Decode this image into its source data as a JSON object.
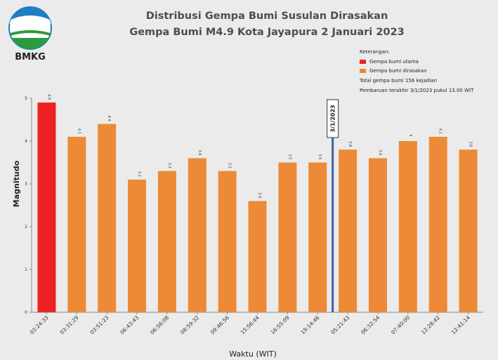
{
  "logo": {
    "text": "BMKG"
  },
  "chart_data": {
    "type": "bar",
    "title": "Distribusi Gempa Bumi Susulan Dirasakan",
    "subtitle": "Gempa Bumi M4.9 Kota Jayapura 2 Januari 2023",
    "xlabel": "Waktu (WIT)",
    "ylabel": "Magnitudo",
    "ylim": [
      0,
      5
    ],
    "yticks": [
      "0",
      "1",
      "2",
      "3",
      "4",
      "5"
    ],
    "grid": false,
    "legend_position": "top-right",
    "categories": [
      "03:24:33",
      "03:31:29",
      "03:51:23",
      "06:43:43",
      "06:56:08",
      "08:59:32",
      "09:46:56",
      "15:56:44",
      "16:55:09",
      "19:14:46",
      "05:21:43",
      "06:32:54",
      "07:40:00",
      "12:28:42",
      "12:41:14"
    ],
    "values": [
      4.9,
      4.1,
      4.4,
      3.1,
      3.3,
      3.6,
      3.3,
      2.6,
      3.5,
      3.5,
      3.8,
      3.6,
      4,
      4.1,
      3.8
    ],
    "value_labels": [
      "4.9",
      "4.1",
      "4.4",
      "3.1",
      "3.3",
      "3.6",
      "3.3",
      "2.6",
      "3.5",
      "3.5",
      "3.8",
      "3.6",
      "4",
      "4.1",
      "3.8"
    ],
    "bar_types": [
      "utama",
      "dirasakan",
      "dirasakan",
      "dirasakan",
      "dirasakan",
      "dirasakan",
      "dirasakan",
      "dirasakan",
      "dirasakan",
      "dirasakan",
      "dirasakan",
      "dirasakan",
      "dirasakan",
      "dirasakan",
      "dirasakan"
    ],
    "legend": {
      "heading": "Keterangan:",
      "items": [
        {
          "label": "Gempa bumi utama",
          "color": "#ee2222"
        },
        {
          "label": "Gempa bumi dirasakan",
          "color": "#ed8a37"
        }
      ],
      "note1": "Total gempa bumi 156 kejadian",
      "note2": "Pembaruan terakhir 3/1/2023 pukul 13.00 WIT"
    },
    "date_marker": {
      "label": "3/1/2023",
      "after_category": "19:14:46",
      "color": "#3b5fa8"
    },
    "colors": {
      "utama": "#ee2222",
      "dirasakan": "#ed8a37"
    }
  }
}
